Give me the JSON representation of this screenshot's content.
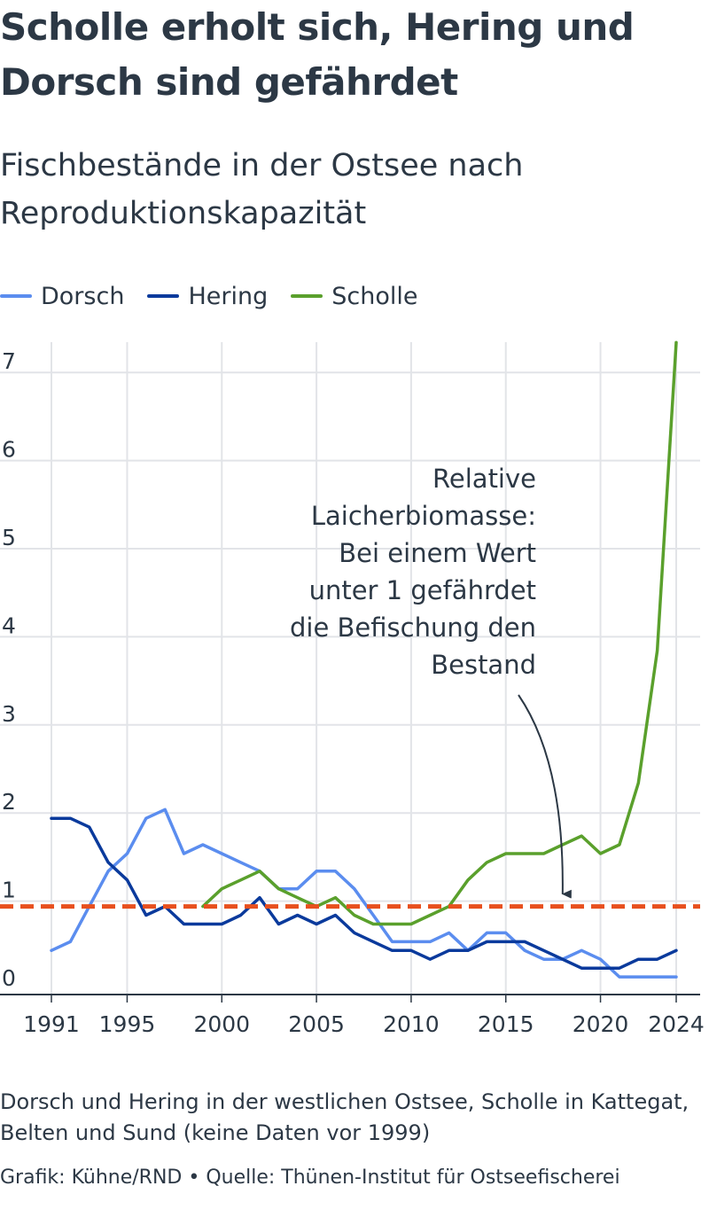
{
  "title": "Scholle erholt sich, Hering und Dorsch sind gefährdet",
  "subtitle": "Fischbestände in der Ostsee nach Reproduktionskapazität",
  "note": "Dorsch und Hering in der westlichen Ostsee, Scholle in Kattegat, Belten und Sund (keine Daten vor 1999)",
  "credit": "Grafik: Kühne/RND • Quelle: Thünen-Institut für Ostseefischerei",
  "chart_data": {
    "type": "line",
    "title": "Scholle erholt sich, Hering und Dorsch sind gefährdet",
    "subtitle": "Fischbestände in der Ostsee nach Reproduktionskapazität",
    "xlabel": "",
    "ylabel": "",
    "x": [
      1991,
      1992,
      1993,
      1994,
      1995,
      1996,
      1997,
      1998,
      1999,
      2000,
      2001,
      2002,
      2003,
      2004,
      2005,
      2006,
      2007,
      2008,
      2009,
      2010,
      2011,
      2012,
      2013,
      2014,
      2015,
      2016,
      2017,
      2018,
      2019,
      2020,
      2021,
      2022,
      2023,
      2024
    ],
    "xlim": [
      1991,
      2024
    ],
    "ylim": [
      0,
      7.4
    ],
    "x_ticks": [
      1991,
      1995,
      2000,
      2005,
      2010,
      2015,
      2020,
      2024
    ],
    "y_ticks": [
      0,
      1,
      2,
      3,
      4,
      5,
      6,
      7
    ],
    "grid": true,
    "legend_position": "top-left",
    "series": [
      {
        "name": "Dorsch",
        "color": "#5b8def",
        "values": [
          0.5,
          0.6,
          1.0,
          1.4,
          1.6,
          2.0,
          2.1,
          1.6,
          1.7,
          1.6,
          1.5,
          1.4,
          1.2,
          1.2,
          1.4,
          1.4,
          1.2,
          0.9,
          0.6,
          0.6,
          0.6,
          0.7,
          0.5,
          0.7,
          0.7,
          0.5,
          0.4,
          0.4,
          0.5,
          0.4,
          0.2,
          0.2,
          0.2,
          0.2
        ]
      },
      {
        "name": "Hering",
        "color": "#0a3a9c",
        "values": [
          2.0,
          2.0,
          1.9,
          1.5,
          1.3,
          0.9,
          1.0,
          0.8,
          0.8,
          0.8,
          0.9,
          1.1,
          0.8,
          0.9,
          0.8,
          0.9,
          0.7,
          0.6,
          0.5,
          0.5,
          0.4,
          0.5,
          0.5,
          0.6,
          0.6,
          0.6,
          0.5,
          0.4,
          0.3,
          0.3,
          0.3,
          0.4,
          0.4,
          0.5
        ]
      },
      {
        "name": "Scholle",
        "color": "#5aa02c",
        "values": [
          null,
          null,
          null,
          null,
          null,
          null,
          null,
          null,
          1.0,
          1.2,
          1.3,
          1.4,
          1.2,
          1.1,
          1.0,
          1.1,
          0.9,
          0.8,
          0.8,
          0.8,
          0.9,
          1.0,
          1.3,
          1.5,
          1.6,
          1.6,
          1.6,
          1.7,
          1.8,
          1.6,
          1.7,
          2.4,
          3.9,
          7.4
        ]
      }
    ],
    "reference_line": {
      "y": 1.0,
      "color": "#e8501e",
      "style": "dashed"
    },
    "annotation": {
      "lines": [
        "Relative",
        "Laicherbiomasse:",
        "Bei einem Wert",
        "unter 1 gefährdet",
        "die Befischung den",
        "Bestand"
      ],
      "arrow_target": {
        "x": 2018,
        "y": 1.0
      }
    }
  }
}
